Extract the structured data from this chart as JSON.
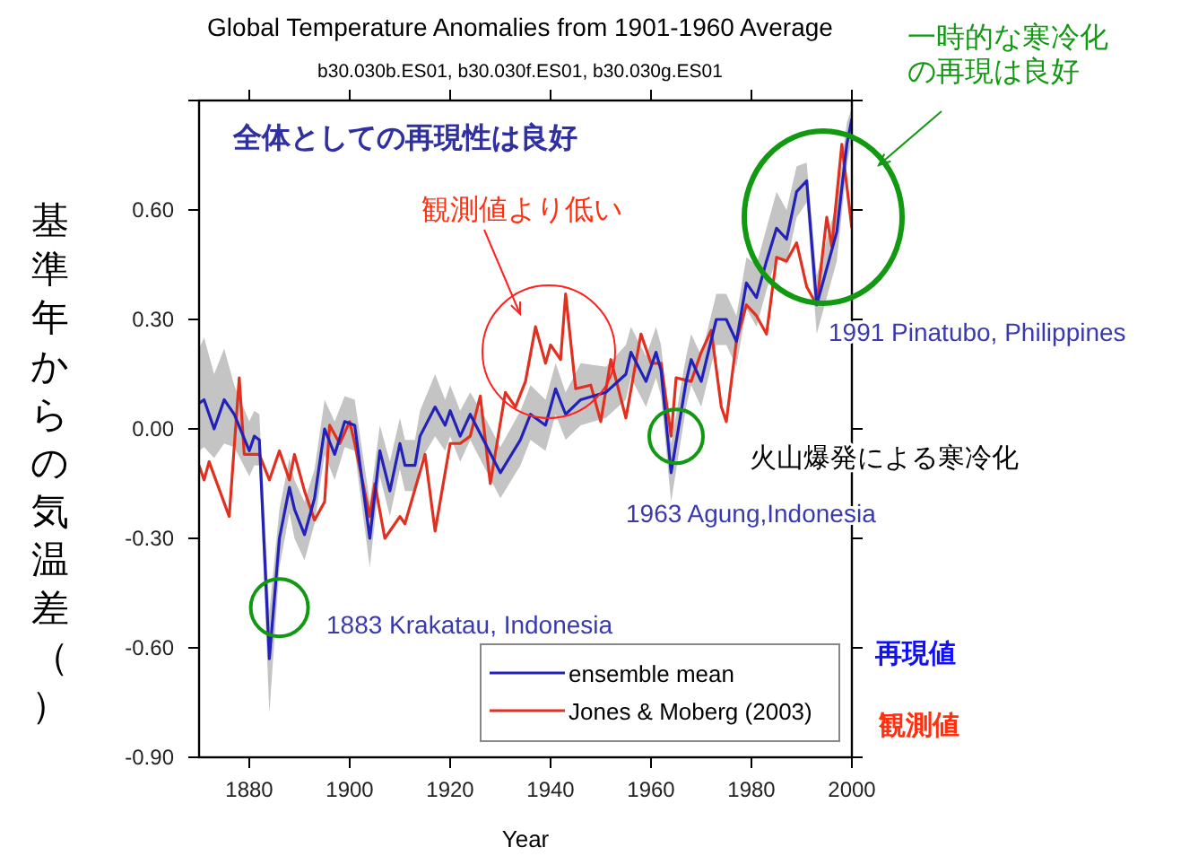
{
  "chart_data": {
    "type": "line",
    "title": "Global Temperature Anomalies from 1901-1960 Average",
    "subtitle": "b30.030b.ES01, b30.030f.ES01, b30.030g.ES01",
    "xlabel": "Year",
    "ylabel": "基準年からの気温差（）",
    "xlim": [
      1870,
      2000
    ],
    "xticks": [
      1880,
      1900,
      1920,
      1940,
      1960,
      1980,
      2000
    ],
    "ylim": [
      -0.9,
      0.9
    ],
    "yticks": [
      {
        "value": -0.9,
        "label": "-0.90"
      },
      {
        "value": -0.6,
        "label": "-0.60"
      },
      {
        "value": -0.3,
        "label": "-0.30"
      },
      {
        "value": 0,
        "label": "0.00"
      },
      {
        "value": 0.3,
        "label": "0.30"
      },
      {
        "value": 0.6,
        "label": "0.60"
      },
      {
        "value": 0.9,
        "label": null
      }
    ],
    "legend": "bottom right",
    "line_style": "solid",
    "marker": "none",
    "series": [
      {
        "name": "ensemble mean",
        "color": "#2222bb",
        "x": [
          1870,
          1871,
          1873,
          1875,
          1877,
          1880,
          1881,
          1882,
          1884,
          1886,
          1888,
          1889,
          1891,
          1893,
          1895,
          1897,
          1899,
          1901,
          1904,
          1906,
          1908,
          1910,
          1911,
          1913,
          1914,
          1917,
          1919,
          1920,
          1922,
          1924,
          1927,
          1930,
          1934,
          1936,
          1939,
          1941,
          1943,
          1946,
          1951,
          1955,
          1956,
          1959,
          1961,
          1962,
          1964,
          1967,
          1968,
          1970,
          1973,
          1975,
          1977,
          1979,
          1981,
          1983,
          1985,
          1987,
          1989,
          1991,
          1993,
          1995,
          1997,
          1999,
          2000
        ],
        "values": [
          0.07,
          0.08,
          0.0,
          0.08,
          0.04,
          -0.06,
          -0.02,
          -0.03,
          -0.63,
          -0.3,
          -0.16,
          -0.22,
          -0.29,
          -0.19,
          0.0,
          -0.07,
          0.02,
          0.01,
          -0.3,
          -0.06,
          -0.17,
          -0.04,
          -0.1,
          -0.1,
          -0.02,
          0.06,
          0.01,
          0.05,
          -0.02,
          0.04,
          -0.04,
          -0.12,
          -0.03,
          0.04,
          0.01,
          0.11,
          0.04,
          0.08,
          0.1,
          0.15,
          0.21,
          0.13,
          0.21,
          0.16,
          -0.12,
          0.13,
          0.19,
          0.13,
          0.3,
          0.3,
          0.24,
          0.4,
          0.36,
          0.46,
          0.55,
          0.52,
          0.65,
          0.68,
          0.34,
          0.44,
          0.54,
          0.78,
          0.85
        ],
        "upper": [
          0.22,
          0.25,
          0.15,
          0.22,
          0.12,
          0.02,
          0.05,
          0.04,
          -0.5,
          -0.22,
          -0.08,
          -0.14,
          -0.2,
          -0.11,
          0.08,
          0.02,
          0.09,
          0.08,
          -0.2,
          0.01,
          -0.09,
          0.03,
          -0.03,
          -0.03,
          0.05,
          0.15,
          0.08,
          0.12,
          0.05,
          0.1,
          0.03,
          -0.05,
          0.05,
          0.12,
          0.08,
          0.18,
          0.1,
          0.18,
          0.17,
          0.23,
          0.28,
          0.2,
          0.28,
          0.23,
          -0.04,
          0.2,
          0.26,
          0.2,
          0.37,
          0.37,
          0.31,
          0.47,
          0.45,
          0.55,
          0.65,
          0.6,
          0.72,
          0.73,
          0.42,
          0.52,
          0.62,
          0.84,
          0.88
        ],
        "lower": [
          -0.06,
          -0.05,
          -0.08,
          -0.04,
          -0.05,
          -0.13,
          -0.1,
          -0.1,
          -0.78,
          -0.38,
          -0.23,
          -0.3,
          -0.36,
          -0.26,
          -0.07,
          -0.14,
          -0.05,
          -0.06,
          -0.38,
          -0.13,
          -0.24,
          -0.11,
          -0.17,
          -0.17,
          -0.09,
          -0.02,
          -0.06,
          -0.02,
          -0.09,
          -0.03,
          -0.11,
          -0.19,
          -0.1,
          -0.03,
          -0.06,
          0.04,
          -0.03,
          0.01,
          0.03,
          0.08,
          0.14,
          0.06,
          0.14,
          0.09,
          -0.2,
          0.06,
          0.12,
          0.06,
          0.23,
          0.23,
          0.17,
          0.33,
          0.28,
          0.38,
          0.47,
          0.45,
          0.58,
          0.62,
          0.26,
          0.36,
          0.46,
          0.72,
          0.8
        ]
      },
      {
        "name": "Jones & Moberg (2003)",
        "color": "#e03020",
        "x": [
          1870,
          1871,
          1872,
          1876,
          1878,
          1879,
          1882,
          1884,
          1886,
          1888,
          1889,
          1891,
          1893,
          1895,
          1896,
          1898,
          1900,
          1901,
          1904,
          1905,
          1907,
          1910,
          1911,
          1915,
          1917,
          1920,
          1922,
          1924,
          1926,
          1928,
          1931,
          1933,
          1935,
          1937,
          1939,
          1940,
          1942,
          1943,
          1945,
          1948,
          1950,
          1952,
          1955,
          1958,
          1960,
          1962,
          1964,
          1965,
          1968,
          1970,
          1972,
          1974,
          1975,
          1977,
          1979,
          1981,
          1983,
          1985,
          1987,
          1989,
          1991,
          1993,
          1995,
          1996,
          1998,
          2000
        ],
        "values": [
          -0.1,
          -0.14,
          -0.09,
          -0.24,
          0.14,
          -0.07,
          -0.07,
          -0.14,
          -0.06,
          -0.14,
          -0.07,
          -0.17,
          -0.25,
          -0.2,
          0.01,
          -0.04,
          0.02,
          -0.04,
          -0.24,
          -0.15,
          -0.3,
          -0.24,
          -0.26,
          -0.07,
          -0.28,
          -0.04,
          -0.04,
          -0.02,
          0.09,
          -0.15,
          0.1,
          0.06,
          0.13,
          0.28,
          0.18,
          0.23,
          0.19,
          0.37,
          0.11,
          0.12,
          0.02,
          0.19,
          0.03,
          0.26,
          0.18,
          0.18,
          -0.02,
          0.14,
          0.13,
          0.21,
          0.27,
          0.06,
          0.02,
          0.24,
          0.34,
          0.31,
          0.26,
          0.47,
          0.46,
          0.51,
          0.39,
          0.34,
          0.58,
          0.5,
          0.78,
          0.55
        ]
      }
    ],
    "annotations": [
      "全体としての再現性は良好",
      "観測値より低い",
      "一時的な寒冷化の再現は良好",
      "1991 Pinatubo, Philippines",
      "火山爆発による寒冷化",
      {
        "text": "1963 Agung,Indonesia",
        "x": 1965,
        "y": -0.02
      },
      {
        "text": "1883 Krakatau, Indonesia",
        "x": 1886,
        "y": -0.49
      },
      "再現値",
      "観測値"
    ]
  }
}
